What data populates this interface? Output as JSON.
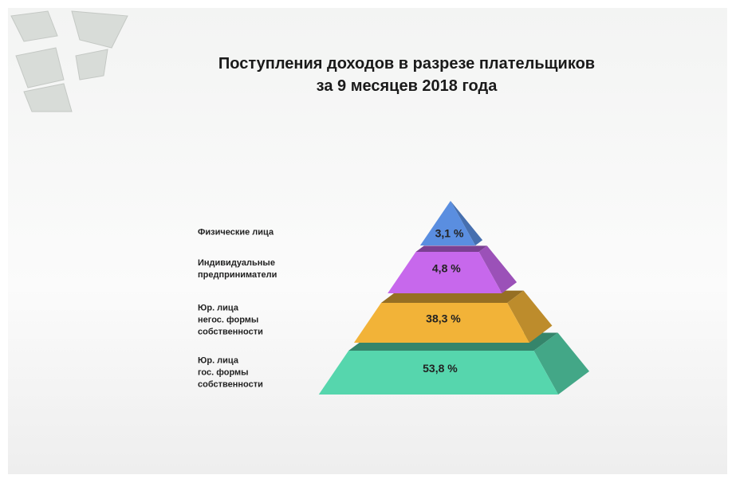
{
  "chart_data": {
    "type": "pyramid",
    "title": "Поступления доходов в разрезе плательщиков\nза 9 месяцев 2018 года",
    "categories": [
      "Физические лица",
      "Индивидуальные\nпредприниматели",
      "Юр. лица\nнегос. формы\nсобственности",
      "Юр. лица\nгос. формы\nсобственности"
    ],
    "values": [
      3.1,
      4.8,
      38.3,
      53.8
    ],
    "value_labels": [
      "3,1 %",
      "4,8 %",
      "38,3 %",
      "53,8 %"
    ],
    "colors": [
      "#5a8ee0",
      "#c768ec",
      "#f2b338",
      "#56d6ad"
    ]
  }
}
